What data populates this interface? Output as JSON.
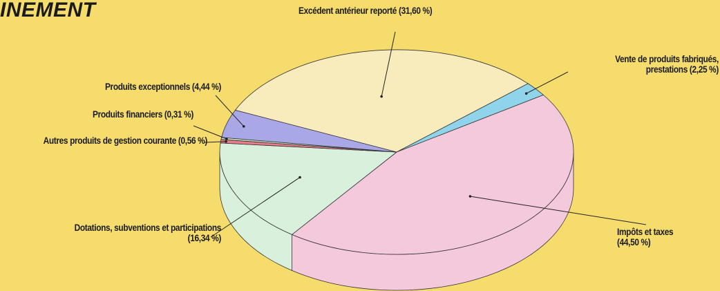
{
  "chart_data": {
    "type": "pie",
    "title": "INEMENT",
    "categories": [
      "Excédent antérieur reporté",
      "Vente de produits fabriqués, prestations",
      "Impôts et taxes",
      "Dotations, subventions et participations",
      "Autres produits de gestion courante",
      "Produits financiers",
      "Produits exceptionnels"
    ],
    "values": [
      31.6,
      2.25,
      44.5,
      16.34,
      0.56,
      0.31,
      4.44
    ],
    "value_labels": [
      "(31,60 %)",
      "(2,25 %)",
      "(44,50 %)",
      "(16,34 %)",
      "(0,56 %)",
      "(0,31 %)",
      "(4,44 %)"
    ],
    "colors": [
      "#f8ebbc",
      "#8fd4ea",
      "#f5c9dc",
      "#d8f0dc",
      "#e97c8a",
      "#c8e3c4",
      "#aaa7e6"
    ]
  }
}
